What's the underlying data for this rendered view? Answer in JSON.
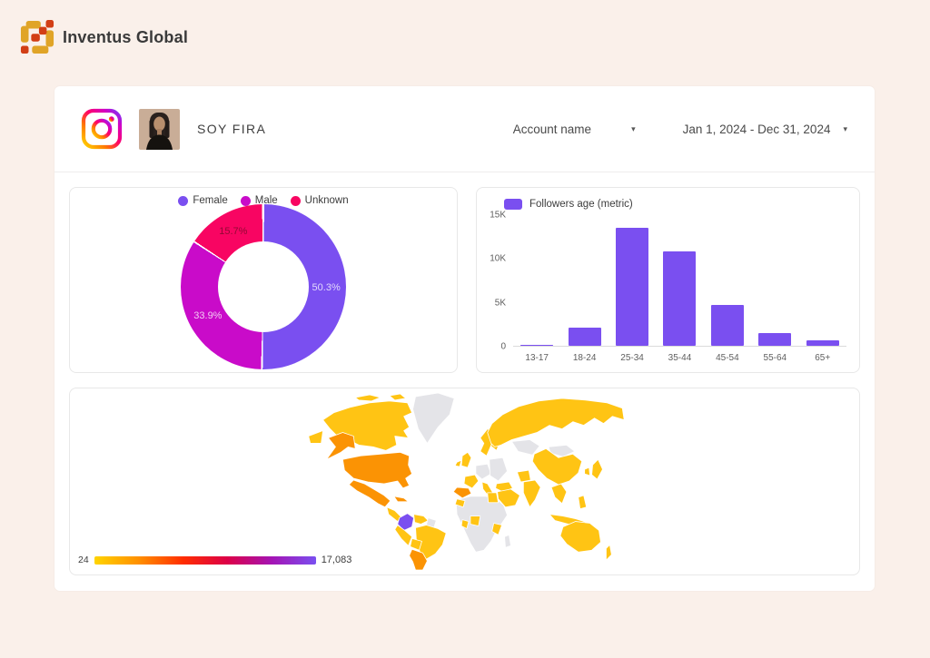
{
  "brand": {
    "name": "Inventus Global"
  },
  "header": {
    "account_name": "SOY FIRA",
    "account_selector_label": "Account name",
    "date_range_label": "Jan 1, 2024 - Dec 31, 2024",
    "caret": "▾"
  },
  "colors": {
    "page_bg": "#FAF0EA",
    "accent_purple": "#7A4FF0",
    "magenta": "#C90BC9",
    "pink": "#F80562",
    "gold": "#FFC414",
    "orange": "#FB9304",
    "no_data_gray": "#E4E4E8"
  },
  "chart_data": [
    {
      "type": "pie",
      "name": "followers-gender-donut",
      "legend_position": "top",
      "donut_hole_ratio": 0.55,
      "start_angle": 0,
      "slices": [
        {
          "label": "Female",
          "value": 50.3,
          "display": "50.3%",
          "color": "#7A4FF0",
          "label_color": "rgba(255,255,255,0.78)"
        },
        {
          "label": "Male",
          "value": 33.9,
          "display": "33.9%",
          "color": "#C90BC9",
          "label_color": "rgba(255,255,255,0.78)"
        },
        {
          "label": "Unknown",
          "value": 15.7,
          "display": "15.7%",
          "color": "#F80562",
          "label_color": "rgba(130,10,45,0.85)"
        }
      ]
    },
    {
      "type": "bar",
      "name": "followers-age-bar",
      "legend": "Followers age (metric)",
      "bar_color": "#7A4FF0",
      "categories": [
        "13-17",
        "18-24",
        "25-34",
        "35-44",
        "45-54",
        "55-64",
        "65+"
      ],
      "values": [
        150,
        2100,
        13400,
        10800,
        4700,
        1450,
        600
      ],
      "ylim": [
        0,
        15000
      ],
      "yticks": [
        {
          "v": 0,
          "label": "0"
        },
        {
          "v": 5000,
          "label": "5K"
        },
        {
          "v": 10000,
          "label": "10K"
        },
        {
          "v": 15000,
          "label": "15K"
        }
      ],
      "grid": false
    },
    {
      "type": "heatmap",
      "name": "followers-country-map",
      "scale": {
        "min": 24,
        "max": 17083,
        "min_label": "24",
        "max_label": "17,083",
        "gradient": [
          "#FFD400",
          "#FF9000",
          "#FF2D00",
          "#DC0048",
          "#A414B4",
          "#7A4FF0"
        ]
      },
      "palette": {
        "none": "#E4E4E8",
        "low": "#FFC414",
        "mid": "#FB9304",
        "max": "#7A4FF0"
      },
      "regions": {
        "greenland": "none",
        "canada": "low",
        "canada-islands": "low",
        "alaska": "mid",
        "russia-east-tip": "low",
        "usa": "mid",
        "mexico": "mid",
        "cuba": "mid",
        "central-america": "low",
        "colombia": "max",
        "venezuela": "low",
        "guyana": "none",
        "brazil": "low",
        "peru": "low",
        "bolivia": "low",
        "argentina": "mid",
        "uk": "low",
        "ireland": "low",
        "scandinavia": "low",
        "finland": "low",
        "france": "low",
        "spain": "mid",
        "central-europe": "none",
        "italy": "low",
        "eastern-europe": "none",
        "turkey": "low",
        "russia": "low",
        "kazakhstan": "none",
        "mongolia": "none",
        "china": "low",
        "pakistan": "low",
        "india": "low",
        "middle-east": "low",
        "egypt": "low",
        "morocco": "low",
        "africa": "none",
        "nigeria": "low",
        "ghana": "low",
        "kenya": "low",
        "madagascar": "none",
        "southeast-asia": "low",
        "philippines": "low",
        "indonesia": "low",
        "indonesia-east": "low",
        "japan": "low",
        "south-korea": "low",
        "australia": "low",
        "new-zealand": "low"
      }
    }
  ]
}
